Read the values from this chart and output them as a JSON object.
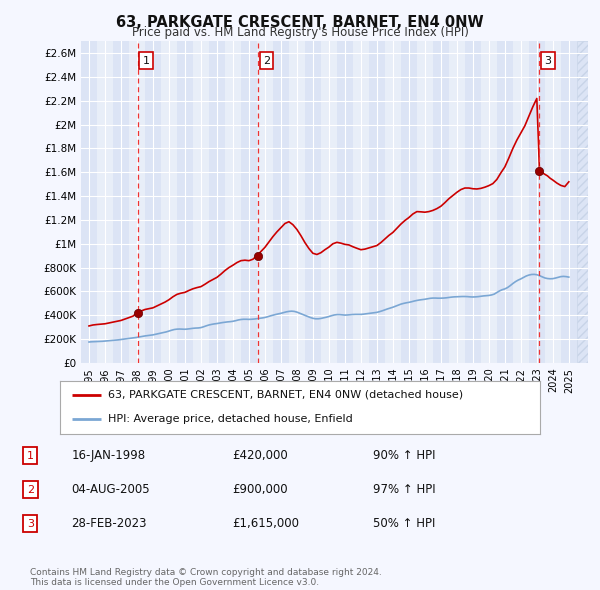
{
  "title": "63, PARKGATE CRESCENT, BARNET, EN4 0NW",
  "subtitle": "Price paid vs. HM Land Registry's House Price Index (HPI)",
  "ylabel_ticks": [
    "£0",
    "£200K",
    "£400K",
    "£600K",
    "£800K",
    "£1M",
    "£1.2M",
    "£1.4M",
    "£1.6M",
    "£1.8M",
    "£2M",
    "£2.2M",
    "£2.4M",
    "£2.6M"
  ],
  "ytick_values": [
    0,
    200000,
    400000,
    600000,
    800000,
    1000000,
    1200000,
    1400000,
    1600000,
    1800000,
    2000000,
    2200000,
    2400000,
    2600000
  ],
  "ylim": [
    0,
    2700000
  ],
  "xlim_start": 1994.5,
  "xlim_end": 2026.2,
  "background_color": "#f5f7ff",
  "plot_bg_light": "#e8eef8",
  "plot_bg_dark": "#dce4f5",
  "grid_color": "#ffffff",
  "red_line_color": "#cc0000",
  "blue_line_color": "#7ba7d4",
  "sale_marker_color": "#990000",
  "vline_color": "#ee3333",
  "number_box_color": "#cc0000",
  "legend_line1": "63, PARKGATE CRESCENT, BARNET, EN4 0NW (detached house)",
  "legend_line2": "HPI: Average price, detached house, Enfield",
  "transactions": [
    {
      "num": "1",
      "year": 1998.04,
      "price": 420000
    },
    {
      "num": "2",
      "year": 2005.58,
      "price": 900000
    },
    {
      "num": "3",
      "year": 2023.16,
      "price": 1615000
    }
  ],
  "table_rows": [
    {
      "num": "1",
      "date": "16-JAN-1998",
      "price": "£420,000",
      "hpi": "90% ↑ HPI"
    },
    {
      "num": "2",
      "date": "04-AUG-2005",
      "price": "£900,000",
      "hpi": "97% ↑ HPI"
    },
    {
      "num": "3",
      "date": "28-FEB-2023",
      "price": "£1,615,000",
      "hpi": "50% ↑ HPI"
    }
  ],
  "footer": "Contains HM Land Registry data © Crown copyright and database right 2024.\nThis data is licensed under the Open Government Licence v3.0.",
  "hpi_data": [
    [
      1995,
      1,
      175000
    ],
    [
      1995,
      3,
      177000
    ],
    [
      1995,
      5,
      178000
    ],
    [
      1995,
      7,
      179000
    ],
    [
      1995,
      9,
      180000
    ],
    [
      1995,
      11,
      181000
    ],
    [
      1996,
      1,
      183000
    ],
    [
      1996,
      3,
      185000
    ],
    [
      1996,
      5,
      187000
    ],
    [
      1996,
      7,
      189000
    ],
    [
      1996,
      9,
      191000
    ],
    [
      1996,
      11,
      193000
    ],
    [
      1997,
      1,
      196000
    ],
    [
      1997,
      3,
      199000
    ],
    [
      1997,
      5,
      202000
    ],
    [
      1997,
      7,
      205000
    ],
    [
      1997,
      9,
      208000
    ],
    [
      1997,
      11,
      211000
    ],
    [
      1998,
      1,
      214000
    ],
    [
      1998,
      3,
      218000
    ],
    [
      1998,
      5,
      222000
    ],
    [
      1998,
      7,
      226000
    ],
    [
      1998,
      9,
      229000
    ],
    [
      1998,
      11,
      232000
    ],
    [
      1999,
      1,
      235000
    ],
    [
      1999,
      3,
      240000
    ],
    [
      1999,
      5,
      245000
    ],
    [
      1999,
      7,
      250000
    ],
    [
      1999,
      9,
      255000
    ],
    [
      1999,
      11,
      260000
    ],
    [
      2000,
      1,
      267000
    ],
    [
      2000,
      3,
      274000
    ],
    [
      2000,
      5,
      280000
    ],
    [
      2000,
      7,
      283000
    ],
    [
      2000,
      9,
      284000
    ],
    [
      2000,
      11,
      283000
    ],
    [
      2001,
      1,
      282000
    ],
    [
      2001,
      3,
      284000
    ],
    [
      2001,
      5,
      287000
    ],
    [
      2001,
      7,
      290000
    ],
    [
      2001,
      9,
      292000
    ],
    [
      2001,
      11,
      293000
    ],
    [
      2002,
      1,
      296000
    ],
    [
      2002,
      3,
      303000
    ],
    [
      2002,
      5,
      311000
    ],
    [
      2002,
      7,
      318000
    ],
    [
      2002,
      9,
      323000
    ],
    [
      2002,
      11,
      327000
    ],
    [
      2003,
      1,
      330000
    ],
    [
      2003,
      3,
      334000
    ],
    [
      2003,
      5,
      338000
    ],
    [
      2003,
      7,
      341000
    ],
    [
      2003,
      9,
      344000
    ],
    [
      2003,
      11,
      346000
    ],
    [
      2004,
      1,
      349000
    ],
    [
      2004,
      3,
      354000
    ],
    [
      2004,
      5,
      360000
    ],
    [
      2004,
      7,
      364000
    ],
    [
      2004,
      9,
      366000
    ],
    [
      2004,
      11,
      366000
    ],
    [
      2005,
      1,
      365000
    ],
    [
      2005,
      3,
      366000
    ],
    [
      2005,
      5,
      368000
    ],
    [
      2005,
      7,
      371000
    ],
    [
      2005,
      9,
      374000
    ],
    [
      2005,
      11,
      377000
    ],
    [
      2006,
      1,
      381000
    ],
    [
      2006,
      3,
      387000
    ],
    [
      2006,
      5,
      394000
    ],
    [
      2006,
      7,
      400000
    ],
    [
      2006,
      9,
      406000
    ],
    [
      2006,
      11,
      411000
    ],
    [
      2007,
      1,
      416000
    ],
    [
      2007,
      3,
      422000
    ],
    [
      2007,
      5,
      428000
    ],
    [
      2007,
      7,
      432000
    ],
    [
      2007,
      9,
      434000
    ],
    [
      2007,
      11,
      432000
    ],
    [
      2008,
      1,
      426000
    ],
    [
      2008,
      3,
      417000
    ],
    [
      2008,
      5,
      408000
    ],
    [
      2008,
      7,
      399000
    ],
    [
      2008,
      9,
      390000
    ],
    [
      2008,
      11,
      381000
    ],
    [
      2009,
      1,
      374000
    ],
    [
      2009,
      3,
      370000
    ],
    [
      2009,
      5,
      370000
    ],
    [
      2009,
      7,
      373000
    ],
    [
      2009,
      9,
      378000
    ],
    [
      2009,
      11,
      383000
    ],
    [
      2010,
      1,
      389000
    ],
    [
      2010,
      3,
      396000
    ],
    [
      2010,
      5,
      402000
    ],
    [
      2010,
      7,
      405000
    ],
    [
      2010,
      9,
      405000
    ],
    [
      2010,
      11,
      403000
    ],
    [
      2011,
      1,
      401000
    ],
    [
      2011,
      3,
      402000
    ],
    [
      2011,
      5,
      404000
    ],
    [
      2011,
      7,
      406000
    ],
    [
      2011,
      9,
      407000
    ],
    [
      2011,
      11,
      407000
    ],
    [
      2012,
      1,
      407000
    ],
    [
      2012,
      3,
      409000
    ],
    [
      2012,
      5,
      412000
    ],
    [
      2012,
      7,
      415000
    ],
    [
      2012,
      9,
      418000
    ],
    [
      2012,
      11,
      421000
    ],
    [
      2013,
      1,
      424000
    ],
    [
      2013,
      3,
      430000
    ],
    [
      2013,
      5,
      437000
    ],
    [
      2013,
      7,
      445000
    ],
    [
      2013,
      9,
      453000
    ],
    [
      2013,
      11,
      460000
    ],
    [
      2014,
      1,
      467000
    ],
    [
      2014,
      3,
      476000
    ],
    [
      2014,
      5,
      485000
    ],
    [
      2014,
      7,
      493000
    ],
    [
      2014,
      9,
      499000
    ],
    [
      2014,
      11,
      504000
    ],
    [
      2015,
      1,
      508000
    ],
    [
      2015,
      3,
      513000
    ],
    [
      2015,
      5,
      519000
    ],
    [
      2015,
      7,
      524000
    ],
    [
      2015,
      9,
      528000
    ],
    [
      2015,
      11,
      531000
    ],
    [
      2016,
      1,
      534000
    ],
    [
      2016,
      3,
      538000
    ],
    [
      2016,
      5,
      542000
    ],
    [
      2016,
      7,
      544000
    ],
    [
      2016,
      9,
      544000
    ],
    [
      2016,
      11,
      543000
    ],
    [
      2017,
      1,
      543000
    ],
    [
      2017,
      3,
      544000
    ],
    [
      2017,
      5,
      546000
    ],
    [
      2017,
      7,
      549000
    ],
    [
      2017,
      9,
      552000
    ],
    [
      2017,
      11,
      554000
    ],
    [
      2018,
      1,
      555000
    ],
    [
      2018,
      3,
      556000
    ],
    [
      2018,
      5,
      557000
    ],
    [
      2018,
      7,
      557000
    ],
    [
      2018,
      9,
      556000
    ],
    [
      2018,
      11,
      554000
    ],
    [
      2019,
      1,
      553000
    ],
    [
      2019,
      3,
      554000
    ],
    [
      2019,
      5,
      556000
    ],
    [
      2019,
      7,
      559000
    ],
    [
      2019,
      9,
      562000
    ],
    [
      2019,
      11,
      564000
    ],
    [
      2020,
      1,
      566000
    ],
    [
      2020,
      3,
      570000
    ],
    [
      2020,
      5,
      577000
    ],
    [
      2020,
      7,
      590000
    ],
    [
      2020,
      9,
      604000
    ],
    [
      2020,
      11,
      614000
    ],
    [
      2021,
      1,
      621000
    ],
    [
      2021,
      3,
      632000
    ],
    [
      2021,
      5,
      648000
    ],
    [
      2021,
      7,
      666000
    ],
    [
      2021,
      9,
      682000
    ],
    [
      2021,
      11,
      695000
    ],
    [
      2022,
      1,
      705000
    ],
    [
      2022,
      3,
      717000
    ],
    [
      2022,
      5,
      729000
    ],
    [
      2022,
      7,
      737000
    ],
    [
      2022,
      9,
      742000
    ],
    [
      2022,
      11,
      743000
    ],
    [
      2023,
      1,
      740000
    ],
    [
      2023,
      3,
      732000
    ],
    [
      2023,
      5,
      722000
    ],
    [
      2023,
      7,
      713000
    ],
    [
      2023,
      9,
      708000
    ],
    [
      2023,
      11,
      706000
    ],
    [
      2024,
      1,
      707000
    ],
    [
      2024,
      3,
      712000
    ],
    [
      2024,
      5,
      718000
    ],
    [
      2024,
      7,
      724000
    ],
    [
      2024,
      9,
      726000
    ],
    [
      2024,
      11,
      724000
    ],
    [
      2025,
      1,
      720000
    ]
  ],
  "red_data": [
    [
      1995,
      1,
      310000
    ],
    [
      1995,
      4,
      318000
    ],
    [
      1995,
      7,
      322000
    ],
    [
      1995,
      10,
      325000
    ],
    [
      1996,
      1,
      328000
    ],
    [
      1996,
      4,
      335000
    ],
    [
      1996,
      7,
      342000
    ],
    [
      1996,
      10,
      349000
    ],
    [
      1997,
      1,
      356000
    ],
    [
      1997,
      4,
      368000
    ],
    [
      1997,
      7,
      380000
    ],
    [
      1997,
      10,
      392000
    ],
    [
      1998,
      1,
      420000
    ],
    [
      1998,
      4,
      435000
    ],
    [
      1998,
      7,
      448000
    ],
    [
      1998,
      10,
      455000
    ],
    [
      1999,
      1,
      462000
    ],
    [
      1999,
      4,
      478000
    ],
    [
      1999,
      7,
      494000
    ],
    [
      1999,
      10,
      510000
    ],
    [
      2000,
      1,
      530000
    ],
    [
      2000,
      4,
      555000
    ],
    [
      2000,
      7,
      575000
    ],
    [
      2000,
      10,
      585000
    ],
    [
      2001,
      1,
      592000
    ],
    [
      2001,
      4,
      608000
    ],
    [
      2001,
      7,
      622000
    ],
    [
      2001,
      10,
      632000
    ],
    [
      2002,
      1,
      640000
    ],
    [
      2002,
      4,
      660000
    ],
    [
      2002,
      7,
      682000
    ],
    [
      2002,
      10,
      700000
    ],
    [
      2003,
      1,
      718000
    ],
    [
      2003,
      4,
      745000
    ],
    [
      2003,
      7,
      775000
    ],
    [
      2003,
      10,
      800000
    ],
    [
      2004,
      1,
      820000
    ],
    [
      2004,
      4,
      842000
    ],
    [
      2004,
      7,
      858000
    ],
    [
      2004,
      10,
      862000
    ],
    [
      2005,
      1,
      858000
    ],
    [
      2005,
      4,
      870000
    ],
    [
      2005,
      7,
      900000
    ],
    [
      2005,
      10,
      935000
    ],
    [
      2006,
      1,
      970000
    ],
    [
      2006,
      4,
      1015000
    ],
    [
      2006,
      7,
      1060000
    ],
    [
      2006,
      10,
      1100000
    ],
    [
      2007,
      1,
      1135000
    ],
    [
      2007,
      4,
      1170000
    ],
    [
      2007,
      7,
      1185000
    ],
    [
      2007,
      10,
      1160000
    ],
    [
      2008,
      1,
      1120000
    ],
    [
      2008,
      4,
      1068000
    ],
    [
      2008,
      7,
      1010000
    ],
    [
      2008,
      10,
      960000
    ],
    [
      2009,
      1,
      920000
    ],
    [
      2009,
      4,
      910000
    ],
    [
      2009,
      7,
      925000
    ],
    [
      2009,
      10,
      950000
    ],
    [
      2010,
      1,
      972000
    ],
    [
      2010,
      4,
      1000000
    ],
    [
      2010,
      7,
      1012000
    ],
    [
      2010,
      10,
      1005000
    ],
    [
      2011,
      1,
      995000
    ],
    [
      2011,
      4,
      990000
    ],
    [
      2011,
      7,
      975000
    ],
    [
      2011,
      10,
      962000
    ],
    [
      2012,
      1,
      950000
    ],
    [
      2012,
      4,
      955000
    ],
    [
      2012,
      7,
      965000
    ],
    [
      2012,
      10,
      975000
    ],
    [
      2013,
      1,
      985000
    ],
    [
      2013,
      4,
      1010000
    ],
    [
      2013,
      7,
      1040000
    ],
    [
      2013,
      10,
      1070000
    ],
    [
      2014,
      1,
      1095000
    ],
    [
      2014,
      4,
      1130000
    ],
    [
      2014,
      7,
      1165000
    ],
    [
      2014,
      10,
      1195000
    ],
    [
      2015,
      1,
      1220000
    ],
    [
      2015,
      4,
      1250000
    ],
    [
      2015,
      7,
      1270000
    ],
    [
      2015,
      10,
      1268000
    ],
    [
      2016,
      1,
      1265000
    ],
    [
      2016,
      4,
      1270000
    ],
    [
      2016,
      7,
      1280000
    ],
    [
      2016,
      10,
      1295000
    ],
    [
      2017,
      1,
      1315000
    ],
    [
      2017,
      4,
      1345000
    ],
    [
      2017,
      7,
      1378000
    ],
    [
      2017,
      10,
      1405000
    ],
    [
      2018,
      1,
      1432000
    ],
    [
      2018,
      4,
      1455000
    ],
    [
      2018,
      7,
      1468000
    ],
    [
      2018,
      10,
      1468000
    ],
    [
      2019,
      1,
      1462000
    ],
    [
      2019,
      4,
      1460000
    ],
    [
      2019,
      7,
      1465000
    ],
    [
      2019,
      10,
      1475000
    ],
    [
      2020,
      1,
      1488000
    ],
    [
      2020,
      4,
      1505000
    ],
    [
      2020,
      7,
      1540000
    ],
    [
      2020,
      10,
      1595000
    ],
    [
      2021,
      1,
      1645000
    ],
    [
      2021,
      4,
      1720000
    ],
    [
      2021,
      7,
      1800000
    ],
    [
      2021,
      10,
      1870000
    ],
    [
      2022,
      1,
      1930000
    ],
    [
      2022,
      4,
      1990000
    ],
    [
      2022,
      7,
      2070000
    ],
    [
      2022,
      10,
      2150000
    ],
    [
      2023,
      1,
      2220000
    ],
    [
      2023,
      3,
      1615000
    ],
    [
      2023,
      6,
      1590000
    ],
    [
      2023,
      9,
      1570000
    ],
    [
      2023,
      11,
      1550000
    ],
    [
      2024,
      1,
      1535000
    ],
    [
      2024,
      4,
      1510000
    ],
    [
      2024,
      7,
      1490000
    ],
    [
      2024,
      10,
      1480000
    ],
    [
      2025,
      1,
      1520000
    ]
  ]
}
